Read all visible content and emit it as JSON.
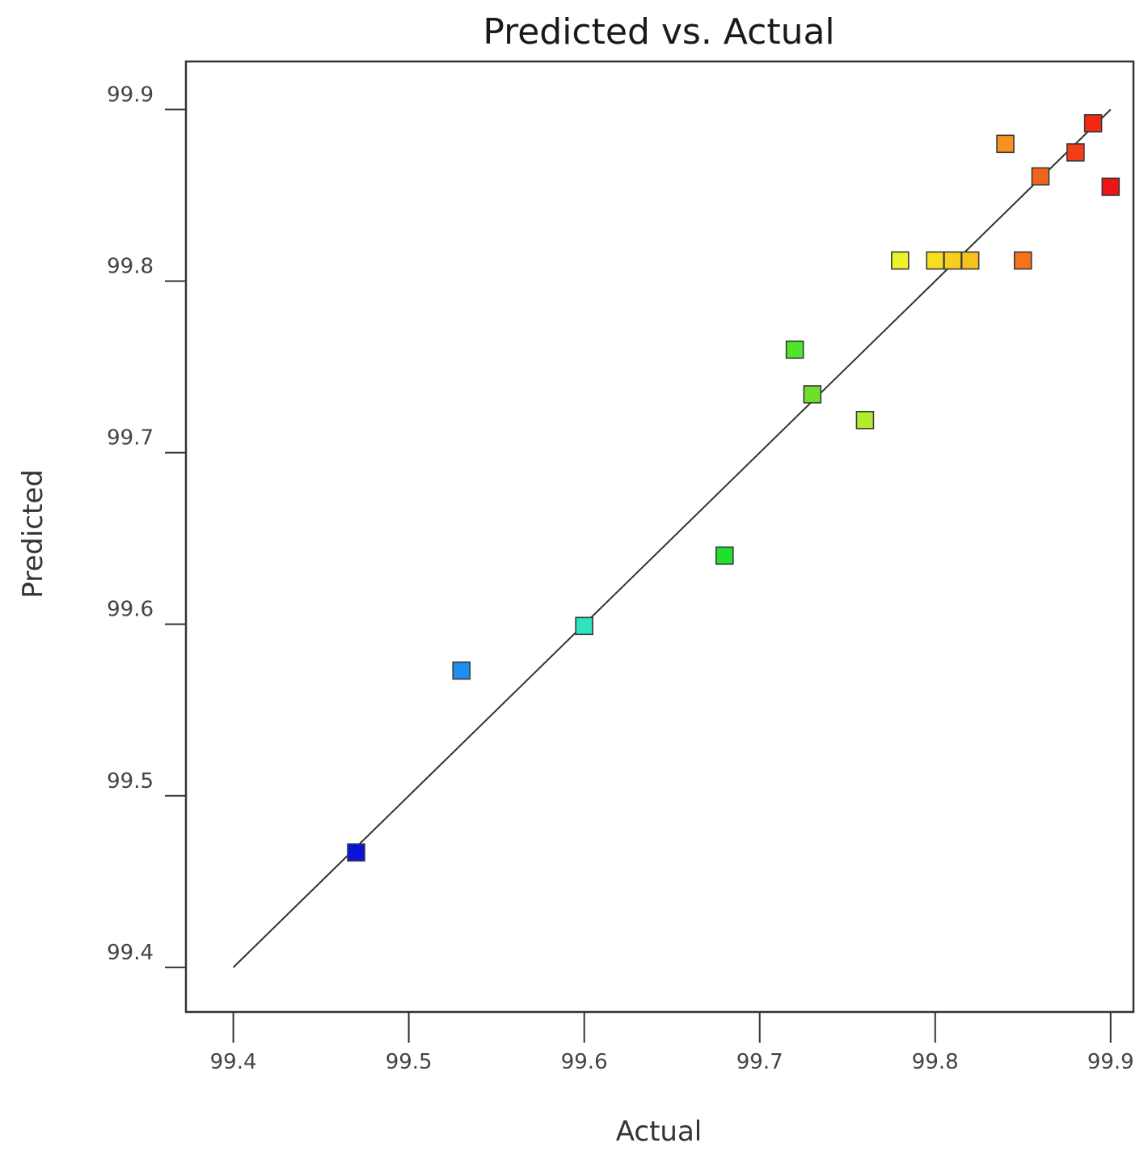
{
  "chart_data": {
    "type": "scatter",
    "title": "Predicted vs. Actual",
    "xlabel": "Actual",
    "ylabel": "Predicted",
    "xlim": [
      99.373,
      99.913
    ],
    "ylim": [
      99.374,
      99.928
    ],
    "x_ticks": [
      "99.4",
      "99.5",
      "99.6",
      "99.7",
      "99.8",
      "99.9"
    ],
    "y_ticks": [
      "99.4",
      "99.5",
      "99.6",
      "99.7",
      "99.8",
      "99.9"
    ],
    "grid": false,
    "marker": "square",
    "reference_line": {
      "from": [
        99.4,
        99.4
      ],
      "to": [
        99.9,
        99.9
      ],
      "color": "#333333"
    },
    "points": [
      {
        "x": 99.47,
        "y": 99.467,
        "color": "#0a14d9"
      },
      {
        "x": 99.53,
        "y": 99.573,
        "color": "#1e8ef0"
      },
      {
        "x": 99.6,
        "y": 99.599,
        "color": "#2ee3c0"
      },
      {
        "x": 99.68,
        "y": 99.64,
        "color": "#1fe02c"
      },
      {
        "x": 99.72,
        "y": 99.76,
        "color": "#4fe52a"
      },
      {
        "x": 99.73,
        "y": 99.734,
        "color": "#6fe02a"
      },
      {
        "x": 99.76,
        "y": 99.719,
        "color": "#b2ec2b"
      },
      {
        "x": 99.78,
        "y": 99.812,
        "color": "#eef22a"
      },
      {
        "x": 99.8,
        "y": 99.812,
        "color": "#f8de1e"
      },
      {
        "x": 99.81,
        "y": 99.812,
        "color": "#f9cf1e"
      },
      {
        "x": 99.82,
        "y": 99.812,
        "color": "#f7c21e"
      },
      {
        "x": 99.84,
        "y": 99.88,
        "color": "#f7931e"
      },
      {
        "x": 99.85,
        "y": 99.812,
        "color": "#f5731a"
      },
      {
        "x": 99.86,
        "y": 99.861,
        "color": "#f0641a"
      },
      {
        "x": 99.88,
        "y": 99.875,
        "color": "#f23d16"
      },
      {
        "x": 99.89,
        "y": 99.892,
        "color": "#f22a14"
      },
      {
        "x": 99.9,
        "y": 99.855,
        "color": "#f01414"
      }
    ]
  }
}
